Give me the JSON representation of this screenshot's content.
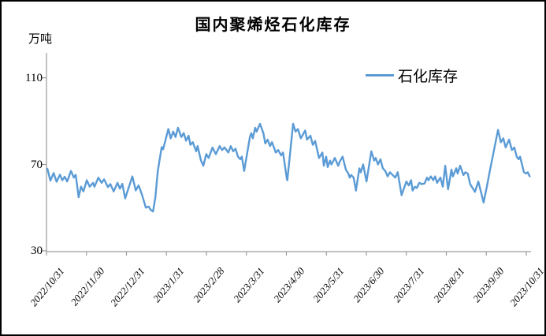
{
  "colors": {
    "series_blue": "#5B9BD5",
    "axis_gray": "#9A9A9A",
    "frame_border": "#000000",
    "background": "#FFFFFF"
  },
  "chart_data": {
    "type": "line",
    "title": "国内聚烯烃石化库存",
    "ylabel": "万吨",
    "grid": false,
    "legend_position": "top-right",
    "y_axis": {
      "min": 30,
      "max": 125,
      "tick_labels": [
        "110",
        "70",
        "30"
      ]
    },
    "x_axis": {
      "label_rotation_deg": -50,
      "tick_labels": [
        "2022/10/31",
        "2022/11/30",
        "2022/12/31",
        "2023/1/31",
        "2023/2/28",
        "2023/3/31",
        "2023/4/30",
        "2023/5/31",
        "2023/6/30",
        "2023/7/31",
        "2023/8/31",
        "2023/9/30",
        "2023/10/31"
      ]
    },
    "series": [
      {
        "name": "石化库存",
        "color": "#5B9BD5",
        "x_unit": "fraction of x-axis span (0 = 2022/10/31, 1 = 2023/10/31), value in 万吨",
        "points": [
          [
            0.002,
            68
          ],
          [
            0.008,
            62.5
          ],
          [
            0.015,
            66
          ],
          [
            0.021,
            62
          ],
          [
            0.028,
            65.2
          ],
          [
            0.033,
            62.7
          ],
          [
            0.038,
            64.3
          ],
          [
            0.043,
            62.1
          ],
          [
            0.051,
            67
          ],
          [
            0.057,
            63.9
          ],
          [
            0.061,
            65.2
          ],
          [
            0.067,
            54.8
          ],
          [
            0.072,
            59.7
          ],
          [
            0.077,
            57.5
          ],
          [
            0.084,
            62.7
          ],
          [
            0.09,
            59.7
          ],
          [
            0.097,
            61.5
          ],
          [
            0.1,
            59.7
          ],
          [
            0.108,
            63.9
          ],
          [
            0.115,
            61.5
          ],
          [
            0.12,
            63.1
          ],
          [
            0.128,
            59.5
          ],
          [
            0.133,
            60.9
          ],
          [
            0.14,
            57.5
          ],
          [
            0.148,
            61.5
          ],
          [
            0.153,
            58.8
          ],
          [
            0.158,
            61
          ],
          [
            0.164,
            54.3
          ],
          [
            0.179,
            64.5
          ],
          [
            0.186,
            58
          ],
          [
            0.192,
            60.3
          ],
          [
            0.199,
            56
          ],
          [
            0.207,
            50
          ],
          [
            0.213,
            50.5
          ],
          [
            0.217,
            49
          ],
          [
            0.222,
            48.2
          ],
          [
            0.227,
            54.8
          ],
          [
            0.232,
            67
          ],
          [
            0.24,
            78
          ],
          [
            0.243,
            77
          ],
          [
            0.254,
            86.4
          ],
          [
            0.259,
            82.1
          ],
          [
            0.264,
            85.2
          ],
          [
            0.269,
            82.7
          ],
          [
            0.274,
            87
          ],
          [
            0.281,
            82.7
          ],
          [
            0.286,
            84.5
          ],
          [
            0.291,
            81
          ],
          [
            0.296,
            83.3
          ],
          [
            0.3,
            79.1
          ],
          [
            0.305,
            80.3
          ],
          [
            0.312,
            76.1
          ],
          [
            0.315,
            78.5
          ],
          [
            0.322,
            71.8
          ],
          [
            0.327,
            69.4
          ],
          [
            0.333,
            74.8
          ],
          [
            0.338,
            73
          ],
          [
            0.346,
            77.8
          ],
          [
            0.353,
            74.8
          ],
          [
            0.361,
            78.5
          ],
          [
            0.366,
            76.7
          ],
          [
            0.371,
            77.9
          ],
          [
            0.379,
            75.5
          ],
          [
            0.384,
            78.5
          ],
          [
            0.389,
            76.1
          ],
          [
            0.394,
            77.3
          ],
          [
            0.399,
            73.6
          ],
          [
            0.404,
            72.4
          ],
          [
            0.407,
            73.6
          ],
          [
            0.412,
            67
          ],
          [
            0.424,
            82.7
          ],
          [
            0.427,
            84.5
          ],
          [
            0.43,
            82.1
          ],
          [
            0.435,
            87
          ],
          [
            0.438,
            85.2
          ],
          [
            0.445,
            88.8
          ],
          [
            0.452,
            84.5
          ],
          [
            0.456,
            79.7
          ],
          [
            0.461,
            81.5
          ],
          [
            0.466,
            78.5
          ],
          [
            0.47,
            80.3
          ],
          [
            0.476,
            76.7
          ],
          [
            0.478,
            75.5
          ],
          [
            0.483,
            76.7
          ],
          [
            0.489,
            74.2
          ],
          [
            0.493,
            75.5
          ],
          [
            0.501,
            63.3
          ],
          [
            0.502,
            62.7
          ],
          [
            0.514,
            88.8
          ],
          [
            0.519,
            85.2
          ],
          [
            0.524,
            86.4
          ],
          [
            0.53,
            82.1
          ],
          [
            0.539,
            85.7
          ],
          [
            0.543,
            81.5
          ],
          [
            0.55,
            83.3
          ],
          [
            0.555,
            79.1
          ],
          [
            0.56,
            80.9
          ],
          [
            0.568,
            73
          ],
          [
            0.575,
            75.5
          ],
          [
            0.578,
            69.4
          ],
          [
            0.583,
            73.6
          ],
          [
            0.586,
            68.8
          ],
          [
            0.591,
            71.8
          ],
          [
            0.594,
            70
          ],
          [
            0.601,
            73
          ],
          [
            0.608,
            69.4
          ],
          [
            0.611,
            71.2
          ],
          [
            0.617,
            73.6
          ],
          [
            0.624,
            67.6
          ],
          [
            0.629,
            65.8
          ],
          [
            0.632,
            63.9
          ],
          [
            0.635,
            65.1
          ],
          [
            0.64,
            63.9
          ],
          [
            0.645,
            57.9
          ],
          [
            0.652,
            68.2
          ],
          [
            0.655,
            66.4
          ],
          [
            0.66,
            70
          ],
          [
            0.667,
            62.1
          ],
          [
            0.677,
            76.1
          ],
          [
            0.683,
            71.8
          ],
          [
            0.686,
            73
          ],
          [
            0.691,
            70
          ],
          [
            0.696,
            72.4
          ],
          [
            0.701,
            68.2
          ],
          [
            0.706,
            67
          ],
          [
            0.711,
            64.5
          ],
          [
            0.716,
            66.4
          ],
          [
            0.722,
            65
          ],
          [
            0.727,
            63.9
          ],
          [
            0.732,
            66.4
          ],
          [
            0.74,
            55.8
          ],
          [
            0.75,
            62.1
          ],
          [
            0.755,
            60.3
          ],
          [
            0.76,
            62.7
          ],
          [
            0.763,
            57.9
          ],
          [
            0.768,
            59.7
          ],
          [
            0.772,
            59.1
          ],
          [
            0.777,
            61.5
          ],
          [
            0.782,
            60.9
          ],
          [
            0.788,
            61.2
          ],
          [
            0.793,
            63.9
          ],
          [
            0.796,
            62.7
          ],
          [
            0.801,
            64.5
          ],
          [
            0.806,
            62.7
          ],
          [
            0.81,
            64.5
          ],
          [
            0.814,
            61.5
          ],
          [
            0.821,
            63.9
          ],
          [
            0.826,
            59.7
          ],
          [
            0.831,
            69.4
          ],
          [
            0.837,
            58.5
          ],
          [
            0.844,
            67.6
          ],
          [
            0.847,
            64.5
          ],
          [
            0.854,
            68.2
          ],
          [
            0.857,
            65.8
          ],
          [
            0.862,
            69.4
          ],
          [
            0.869,
            65.1
          ],
          [
            0.873,
            66.4
          ],
          [
            0.878,
            65.8
          ],
          [
            0.883,
            60.9
          ],
          [
            0.888,
            59.1
          ],
          [
            0.893,
            57.3
          ],
          [
            0.9,
            62.1
          ],
          [
            0.911,
            52.4
          ],
          [
            0.918,
            60
          ],
          [
            0.924,
            67
          ],
          [
            0.933,
            77
          ],
          [
            0.941,
            86
          ],
          [
            0.947,
            80.3
          ],
          [
            0.952,
            82.1
          ],
          [
            0.957,
            77.9
          ],
          [
            0.964,
            81.5
          ],
          [
            0.97,
            76.7
          ],
          [
            0.975,
            77.9
          ],
          [
            0.98,
            73.6
          ],
          [
            0.984,
            72.4
          ],
          [
            0.987,
            73.6
          ],
          [
            0.995,
            66.4
          ],
          [
            1.0,
            65.8
          ],
          [
            1.003,
            66.4
          ],
          [
            1.007,
            64.5
          ]
        ]
      }
    ]
  }
}
